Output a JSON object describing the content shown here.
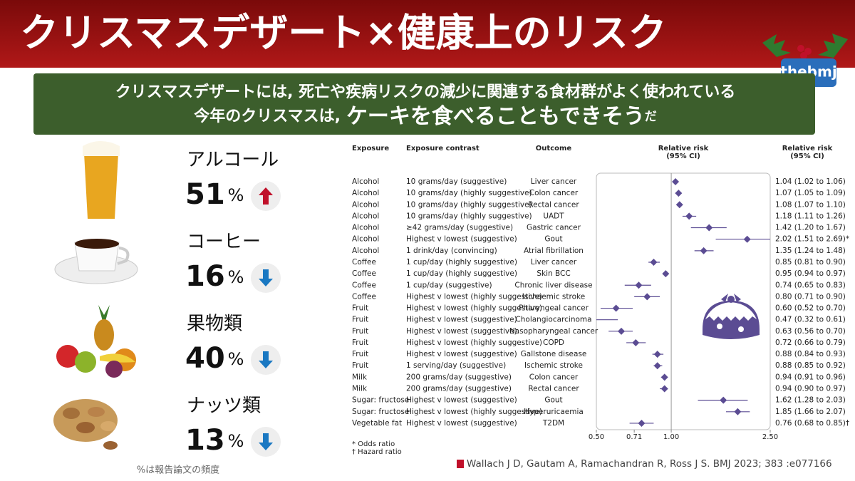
{
  "header": {
    "title": "クリスマスデザート×健康上のリスク",
    "banner_line1": "クリスマスデザートには, 死亡や疾病リスクの減少に関連する食材群がよく使われている",
    "banner_line2": [
      "今年のクリスマスは,",
      "ケーキを食べることもできそう",
      "だ"
    ]
  },
  "logo": "thebmj",
  "stats": [
    {
      "label": "アルコール",
      "value": 51,
      "unit": "%",
      "trend": "up"
    },
    {
      "label": "コーヒー",
      "value": 16,
      "unit": "%",
      "trend": "down"
    },
    {
      "label": "果物類",
      "value": 40,
      "unit": "%",
      "trend": "down"
    },
    {
      "label": "ナッツ類",
      "value": 13,
      "unit": "%",
      "trend": "down"
    }
  ],
  "stats_note": "%は報告論文の頻度",
  "chart_data": {
    "type": "forest",
    "column_headers": [
      "Exposure",
      "Exposure contrast",
      "Outcome",
      "Relative risk\n(95% CI)",
      "Relative risk\n(95% CI)"
    ],
    "exposure": [
      "Alcohol",
      "Alcohol",
      "Alcohol",
      "Alcohol",
      "Alcohol",
      "Alcohol",
      "Alcohol",
      "Coffee",
      "Coffee",
      "Coffee",
      "Coffee",
      "Fruit",
      "Fruit",
      "Fruit",
      "Fruit",
      "Fruit",
      "Fruit",
      "Milk",
      "Milk",
      "Sugar: fructose",
      "Sugar: fructose",
      "Vegetable fat"
    ],
    "contrast": [
      "10 grams/day (suggestive)",
      "10 grams/day (highly suggestive)",
      "10 grams/day (highly suggestive)",
      "10 grams/day (highly suggestive)",
      "≥42 grams/day (suggestive)",
      "Highest v lowest (suggestive)",
      "1 drink/day (convincing)",
      "1 cup/day (highly suggestive)",
      "1 cup/day (highly suggestive)",
      "1 cup/day (suggestive)",
      "Highest v lowest (highly suggestive)",
      "Highest v lowest (highly suggestive)",
      "Highest v lowest (suggestive)",
      "Highest v lowest (suggestive)",
      "Highest v lowest (highly suggestive)",
      "Highest v lowest (suggestive)",
      "1 serving/day (suggestive)",
      "200 grams/day (suggestive)",
      "200 grams/day (suggestive)",
      "Highest v lowest (suggestive)",
      "Highest v lowest (highly suggestive)",
      "Highest v lowest (suggestive)"
    ],
    "outcome": [
      "Liver cancer",
      "Colon cancer",
      "Rectal cancer",
      "UADT",
      "Gastric cancer",
      "Gout",
      "Atrial fibrillation",
      "Liver cancer",
      "Skin BCC",
      "Chronic liver disease",
      "Ischaemic stroke",
      "Pharyngeal cancer",
      "Cholangiocarcinoma",
      "Nasopharyngeal cancer",
      "COPD",
      "Gallstone disease",
      "Ischemic stroke",
      "Colon cancer",
      "Rectal cancer",
      "Gout",
      "Hyperuricaemia",
      "T2DM"
    ],
    "values": [
      1.04,
      1.07,
      1.08,
      1.18,
      1.42,
      2.02,
      1.35,
      0.85,
      0.95,
      0.74,
      0.8,
      0.6,
      0.47,
      0.63,
      0.72,
      0.88,
      0.88,
      0.94,
      0.94,
      1.62,
      1.85,
      0.76
    ],
    "ci_low": [
      1.02,
      1.05,
      1.07,
      1.11,
      1.2,
      1.51,
      1.24,
      0.81,
      0.94,
      0.65,
      0.71,
      0.52,
      0.32,
      0.56,
      0.66,
      0.84,
      0.85,
      0.91,
      0.9,
      1.28,
      1.66,
      0.68
    ],
    "ci_high": [
      1.06,
      1.09,
      1.1,
      1.26,
      1.67,
      2.69,
      1.48,
      0.9,
      0.97,
      0.83,
      0.9,
      0.7,
      0.61,
      0.7,
      0.79,
      0.93,
      0.92,
      0.96,
      0.97,
      2.03,
      2.07,
      0.85
    ],
    "value_labels": [
      "1.04 (1.02 to 1.06)",
      "1.07 (1.05 to 1.09)",
      "1.08 (1.07 to 1.10)",
      "1.18 (1.11 to 1.26)",
      "1.42 (1.20 to 1.67)",
      "2.02 (1.51 to 2.69)*",
      "1.35 (1.24 to 1.48)",
      "0.85 (0.81 to 0.90)",
      "0.95 (0.94 to 0.97)",
      "0.74 (0.65 to 0.83)",
      "0.80 (0.71 to 0.90)",
      "0.60 (0.52 to 0.70)",
      "0.47 (0.32 to 0.61)",
      "0.63 (0.56 to 0.70)",
      "0.72 (0.66 to 0.79)",
      "0.88 (0.84 to 0.93)",
      "0.88 (0.85 to 0.92)",
      "0.94 (0.91 to 0.96)",
      "0.94 (0.90 to 0.97)",
      "1.62 (1.28 to 2.03)",
      "1.85 (1.66 to 2.07)",
      "0.76 (0.68 to 0.85)†"
    ],
    "xlim": [
      0.5,
      2.5
    ],
    "xscale": "log",
    "xticks": [
      {
        "value": 0.5,
        "label": "0.50"
      },
      {
        "value": 0.71,
        "label": "0.71"
      },
      {
        "value": 1,
        "label": "1.00"
      },
      {
        "value": 2.5,
        "label": "2.50"
      }
    ],
    "reference": 1,
    "color": "#5b4c93",
    "footnotes": [
      "* Odds ratio",
      "† Hazard ratio"
    ]
  },
  "citation": "Wallach J D, Gautam A, Ramachandran R, Ross J S. BMJ 2023; 383 :e077166"
}
